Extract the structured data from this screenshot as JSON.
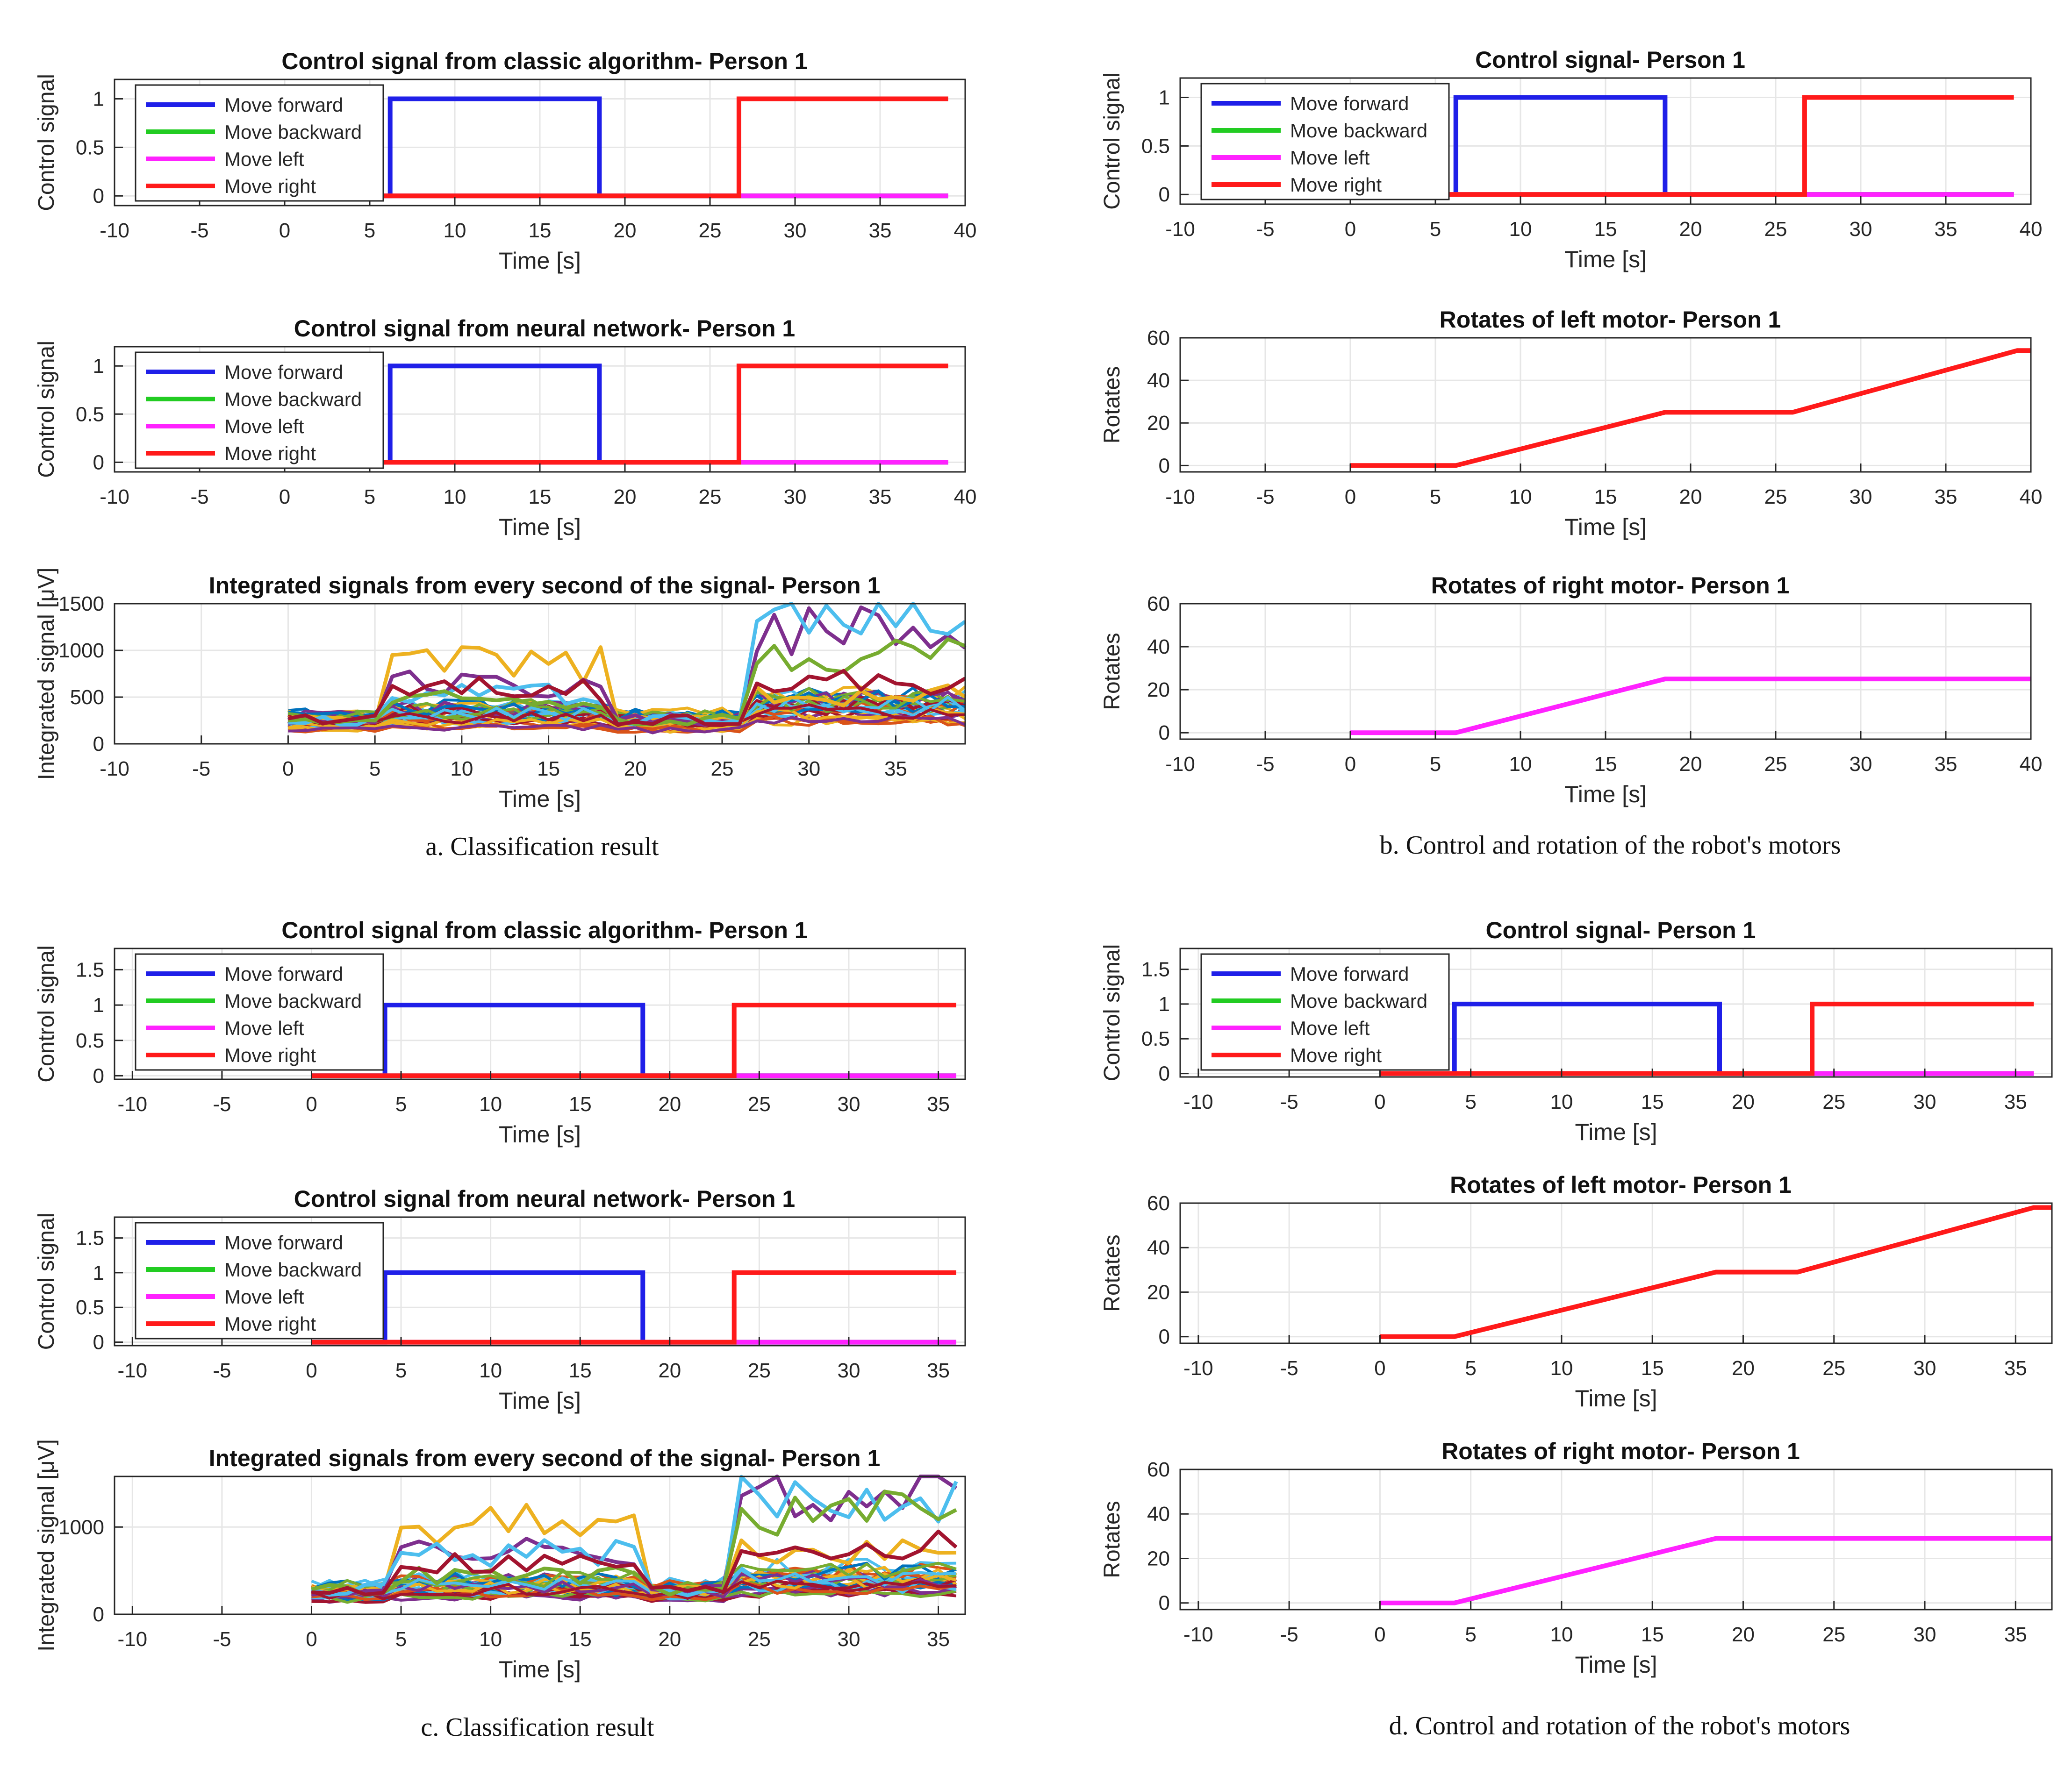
{
  "colors": {
    "forward": "#1f1fe8",
    "backward": "#22cc22",
    "left": "#ff22ff",
    "right": "#ff1a1a",
    "grid": "#e6e6e6",
    "axis": "#262626"
  },
  "captions": [
    "a. Classification result",
    "b. Control and rotation of the robot's motors",
    "c. Classification result",
    "d. Control and rotation of the robot's motors"
  ],
  "chart_data": [
    {
      "panel": "a",
      "type": "line",
      "title": "Control signal from classic algorithm- Person 1",
      "xlabel": "Time [s]",
      "ylabel": "Control signal",
      "xlim": [
        -10,
        40
      ],
      "ylim": [
        -0.1,
        1.2
      ],
      "xticks": [
        -10,
        -5,
        0,
        5,
        10,
        15,
        20,
        25,
        30,
        35,
        40
      ],
      "yticks": [
        0,
        0.5,
        1
      ],
      "ytick_labels": [
        "0",
        "0.5",
        "1"
      ],
      "grid": true,
      "legend_position": "top-left",
      "series": [
        {
          "name": "Move forward",
          "color": "#1f1fe8",
          "x": [
            0,
            6.2,
            6.2,
            18.5,
            18.5,
            39
          ],
          "y": [
            0,
            0,
            1,
            1,
            0,
            0
          ]
        },
        {
          "name": "Move backward",
          "color": "#22cc22",
          "x": [
            0,
            39
          ],
          "y": [
            0,
            0
          ]
        },
        {
          "name": "Move left",
          "color": "#ff22ff",
          "x": [
            0,
            39
          ],
          "y": [
            0,
            0
          ]
        },
        {
          "name": "Move right",
          "color": "#ff1a1a",
          "x": [
            0,
            26.7,
            26.7,
            39
          ],
          "y": [
            0,
            0,
            1,
            1
          ]
        }
      ]
    },
    {
      "panel": "a",
      "type": "line",
      "title": "Control signal from neural network- Person 1",
      "xlabel": "Time [s]",
      "ylabel": "Control signal",
      "xlim": [
        -10,
        40
      ],
      "ylim": [
        -0.1,
        1.2
      ],
      "xticks": [
        -10,
        -5,
        0,
        5,
        10,
        15,
        20,
        25,
        30,
        35,
        40
      ],
      "yticks": [
        0,
        0.5,
        1
      ],
      "ytick_labels": [
        "0",
        "0.5",
        "1"
      ],
      "grid": true,
      "legend_position": "top-left",
      "series": [
        {
          "name": "Move forward",
          "color": "#1f1fe8",
          "x": [
            0,
            6.2,
            6.2,
            18.5,
            18.5,
            39
          ],
          "y": [
            0,
            0,
            1,
            1,
            0,
            0
          ]
        },
        {
          "name": "Move backward",
          "color": "#22cc22",
          "x": [
            0,
            39
          ],
          "y": [
            0,
            0
          ]
        },
        {
          "name": "Move left",
          "color": "#ff22ff",
          "x": [
            0,
            39
          ],
          "y": [
            0,
            0
          ]
        },
        {
          "name": "Move right",
          "color": "#ff1a1a",
          "x": [
            0,
            26.7,
            26.7,
            39
          ],
          "y": [
            0,
            0,
            1,
            1
          ]
        }
      ]
    },
    {
      "panel": "a",
      "type": "line",
      "title": "Integrated signals from every second of the signal- Person 1",
      "xlabel": "Time [s]",
      "ylabel": "Integrated signal [μV]",
      "xlim": [
        -10,
        39
      ],
      "ylim": [
        0,
        1500
      ],
      "xticks": [
        -10,
        -5,
        0,
        5,
        10,
        15,
        20,
        25,
        30,
        35
      ],
      "yticks": [
        0,
        500,
        1000,
        1500
      ],
      "ytick_labels": [
        "0",
        "500",
        "1000",
        "1500"
      ],
      "grid": true,
      "multichannel": {
        "x_start": 0,
        "x_end": 39,
        "x_step": 1,
        "base_level": 260,
        "active_level": 330,
        "high_level": 420,
        "segments": [
          [
            6,
            18.5
          ],
          [
            26.7,
            39
          ]
        ],
        "highlight_series": [
          {
            "color": "#edb120",
            "active_a": 850,
            "active_b": 520
          },
          {
            "color": "#7e2f8e",
            "active_a": 650,
            "active_b": 1200
          },
          {
            "color": "#4dbeee",
            "active_a": 540,
            "active_b": 1330
          },
          {
            "color": "#77ac30",
            "active_a": 480,
            "active_b": 950
          },
          {
            "color": "#a2142f",
            "active_a": 580,
            "active_b": 640
          }
        ]
      }
    },
    {
      "panel": "b",
      "type": "line",
      "title": "Control signal- Person 1",
      "xlabel": "Time [s]",
      "ylabel": "Control signal",
      "xlim": [
        -10,
        40
      ],
      "ylim": [
        -0.1,
        1.2
      ],
      "xticks": [
        -10,
        -5,
        0,
        5,
        10,
        15,
        20,
        25,
        30,
        35,
        40
      ],
      "yticks": [
        0,
        0.5,
        1
      ],
      "ytick_labels": [
        "0",
        "0.5",
        "1"
      ],
      "grid": true,
      "legend_position": "top-left",
      "series": [
        {
          "name": "Move forward",
          "color": "#1f1fe8",
          "x": [
            0,
            6.2,
            6.2,
            18.5,
            18.5,
            39
          ],
          "y": [
            0,
            0,
            1,
            1,
            0,
            0
          ]
        },
        {
          "name": "Move backward",
          "color": "#22cc22",
          "x": [
            0,
            39
          ],
          "y": [
            0,
            0
          ]
        },
        {
          "name": "Move left",
          "color": "#ff22ff",
          "x": [
            0,
            39
          ],
          "y": [
            0,
            0
          ]
        },
        {
          "name": "Move right",
          "color": "#ff1a1a",
          "x": [
            0,
            26.7,
            26.7,
            39
          ],
          "y": [
            0,
            0,
            1,
            1
          ]
        }
      ]
    },
    {
      "panel": "b",
      "type": "line",
      "title": "Rotates of left motor- Person 1",
      "xlabel": "Time [s]",
      "ylabel": "Rotates",
      "xlim": [
        -10,
        40
      ],
      "ylim": [
        -3,
        60
      ],
      "xticks": [
        -10,
        -5,
        0,
        5,
        10,
        15,
        20,
        25,
        30,
        35,
        40
      ],
      "yticks": [
        0,
        20,
        40,
        60
      ],
      "ytick_labels": [
        "0",
        "20",
        "40",
        "60"
      ],
      "grid": true,
      "series": [
        {
          "color": "#ff1a1a",
          "x": [
            0,
            6.2,
            18.5,
            26,
            39.2,
            40
          ],
          "y": [
            0,
            0,
            25,
            25,
            54,
            54
          ]
        }
      ]
    },
    {
      "panel": "b",
      "type": "line",
      "title": "Rotates of right motor- Person 1",
      "xlabel": "Time [s]",
      "ylabel": "Rotates",
      "xlim": [
        -10,
        40
      ],
      "ylim": [
        -3,
        60
      ],
      "xticks": [
        -10,
        -5,
        0,
        5,
        10,
        15,
        20,
        25,
        30,
        35,
        40
      ],
      "yticks": [
        0,
        20,
        40,
        60
      ],
      "ytick_labels": [
        "0",
        "20",
        "40",
        "60"
      ],
      "grid": true,
      "series": [
        {
          "color": "#ff22ff",
          "x": [
            0,
            6.2,
            18.5,
            40
          ],
          "y": [
            0,
            0,
            25,
            25
          ]
        }
      ]
    },
    {
      "panel": "c",
      "type": "line",
      "title": "Control signal from classic algorithm- Person 1",
      "xlabel": "Time [s]",
      "ylabel": "Control signal",
      "xlim": [
        -11,
        36.5
      ],
      "ylim": [
        -0.05,
        1.8
      ],
      "xticks": [
        -10,
        -5,
        0,
        5,
        10,
        15,
        20,
        25,
        30,
        35
      ],
      "yticks": [
        0,
        0.5,
        1,
        1.5
      ],
      "ytick_labels": [
        "0",
        "0.5",
        "1",
        "1.5"
      ],
      "grid": true,
      "legend_position": "top-left",
      "series": [
        {
          "name": "Move forward",
          "color": "#1f1fe8",
          "x": [
            0,
            4.1,
            4.1,
            18.5,
            18.5,
            36
          ],
          "y": [
            0,
            0,
            1,
            1,
            0,
            0
          ]
        },
        {
          "name": "Move backward",
          "color": "#22cc22",
          "x": [
            0,
            36
          ],
          "y": [
            0,
            0
          ]
        },
        {
          "name": "Move left",
          "color": "#ff22ff",
          "x": [
            0,
            36
          ],
          "y": [
            0,
            0
          ]
        },
        {
          "name": "Move right",
          "color": "#ff1a1a",
          "x": [
            0,
            23.6,
            23.6,
            36
          ],
          "y": [
            0,
            0,
            1,
            1
          ]
        }
      ]
    },
    {
      "panel": "c",
      "type": "line",
      "title": "Control signal from neural network- Person 1",
      "xlabel": "Time [s]",
      "ylabel": "Control signal",
      "xlim": [
        -11,
        36.5
      ],
      "ylim": [
        -0.05,
        1.8
      ],
      "xticks": [
        -10,
        -5,
        0,
        5,
        10,
        15,
        20,
        25,
        30,
        35
      ],
      "yticks": [
        0,
        0.5,
        1,
        1.5
      ],
      "ytick_labels": [
        "0",
        "0.5",
        "1",
        "1.5"
      ],
      "grid": true,
      "legend_position": "top-left",
      "series": [
        {
          "name": "Move forward",
          "color": "#1f1fe8",
          "x": [
            0,
            4.1,
            4.1,
            18.5,
            18.5,
            36
          ],
          "y": [
            0,
            0,
            1,
            1,
            0,
            0
          ]
        },
        {
          "name": "Move backward",
          "color": "#22cc22",
          "x": [
            0,
            36
          ],
          "y": [
            0,
            0
          ]
        },
        {
          "name": "Move left",
          "color": "#ff22ff",
          "x": [
            0,
            36
          ],
          "y": [
            0,
            0
          ]
        },
        {
          "name": "Move right",
          "color": "#ff1a1a",
          "x": [
            0,
            23.6,
            23.6,
            36
          ],
          "y": [
            0,
            0,
            1,
            1
          ]
        }
      ]
    },
    {
      "panel": "c",
      "type": "line",
      "title": "Integrated signals from every second of the signal- Person 1",
      "xlabel": "Time [s]",
      "ylabel": "Integrated signal [μV]",
      "xlim": [
        -11,
        36.5
      ],
      "ylim": [
        0,
        1580
      ],
      "xticks": [
        -10,
        -5,
        0,
        5,
        10,
        15,
        20,
        25,
        30,
        35
      ],
      "yticks": [
        0,
        1000
      ],
      "ytick_labels": [
        "0",
        "1000"
      ],
      "grid": true,
      "multichannel": {
        "x_start": 0,
        "x_end": 36,
        "x_step": 1,
        "base_level": 280,
        "active_level": 350,
        "high_level": 420,
        "segments": [
          [
            4.1,
            18.5
          ],
          [
            23.6,
            36
          ]
        ],
        "highlight_series": [
          {
            "color": "#edb120",
            "active_a": 1050,
            "active_b": 700
          },
          {
            "color": "#7e2f8e",
            "active_a": 720,
            "active_b": 1380
          },
          {
            "color": "#4dbeee",
            "active_a": 700,
            "active_b": 1350
          },
          {
            "color": "#77ac30",
            "active_a": 450,
            "active_b": 1150
          },
          {
            "color": "#a2142f",
            "active_a": 600,
            "active_b": 800
          }
        ]
      }
    },
    {
      "panel": "d",
      "type": "line",
      "title": "Control signal- Person 1",
      "xlabel": "Time [s]",
      "ylabel": "Control signal",
      "xlim": [
        -11,
        37
      ],
      "ylim": [
        -0.05,
        1.8
      ],
      "xticks": [
        -10,
        -5,
        0,
        5,
        10,
        15,
        20,
        25,
        30,
        35
      ],
      "yticks": [
        0,
        0.5,
        1,
        1.5
      ],
      "ytick_labels": [
        "0",
        "0.5",
        "1",
        "1.5"
      ],
      "grid": true,
      "legend_position": "top-left",
      "series": [
        {
          "name": "Move forward",
          "color": "#1f1fe8",
          "x": [
            0,
            4.1,
            4.1,
            18.7,
            18.7,
            36
          ],
          "y": [
            0,
            0,
            1,
            1,
            0,
            0
          ]
        },
        {
          "name": "Move backward",
          "color": "#22cc22",
          "x": [
            0,
            36
          ],
          "y": [
            0,
            0
          ]
        },
        {
          "name": "Move left",
          "color": "#ff22ff",
          "x": [
            0,
            36
          ],
          "y": [
            0,
            0
          ]
        },
        {
          "name": "Move right",
          "color": "#ff1a1a",
          "x": [
            0,
            23.8,
            23.8,
            36
          ],
          "y": [
            0,
            0,
            1,
            1
          ]
        }
      ]
    },
    {
      "panel": "d",
      "type": "line",
      "title": "Rotates of left motor- Person 1",
      "xlabel": "Time [s]",
      "ylabel": "Rotates",
      "xlim": [
        -11,
        37
      ],
      "ylim": [
        -3,
        60
      ],
      "xticks": [
        -10,
        -5,
        0,
        5,
        10,
        15,
        20,
        25,
        30,
        35
      ],
      "yticks": [
        0,
        20,
        40,
        60
      ],
      "ytick_labels": [
        "0",
        "20",
        "40",
        "60"
      ],
      "grid": true,
      "series": [
        {
          "color": "#ff1a1a",
          "x": [
            0,
            4.1,
            18.5,
            23,
            36,
            37
          ],
          "y": [
            0,
            0,
            29,
            29,
            58,
            58
          ]
        }
      ]
    },
    {
      "panel": "d",
      "type": "line",
      "title": "Rotates of right motor- Person 1",
      "xlabel": "Time [s]",
      "ylabel": "Rotates",
      "xlim": [
        -11,
        37
      ],
      "ylim": [
        -3,
        60
      ],
      "xticks": [
        -10,
        -5,
        0,
        5,
        10,
        15,
        20,
        25,
        30,
        35
      ],
      "yticks": [
        0,
        20,
        40,
        60
      ],
      "ytick_labels": [
        "0",
        "20",
        "40",
        "60"
      ],
      "grid": true,
      "series": [
        {
          "color": "#ff22ff",
          "x": [
            0,
            4.1,
            18.5,
            37
          ],
          "y": [
            0,
            0,
            29,
            29
          ]
        }
      ]
    }
  ]
}
